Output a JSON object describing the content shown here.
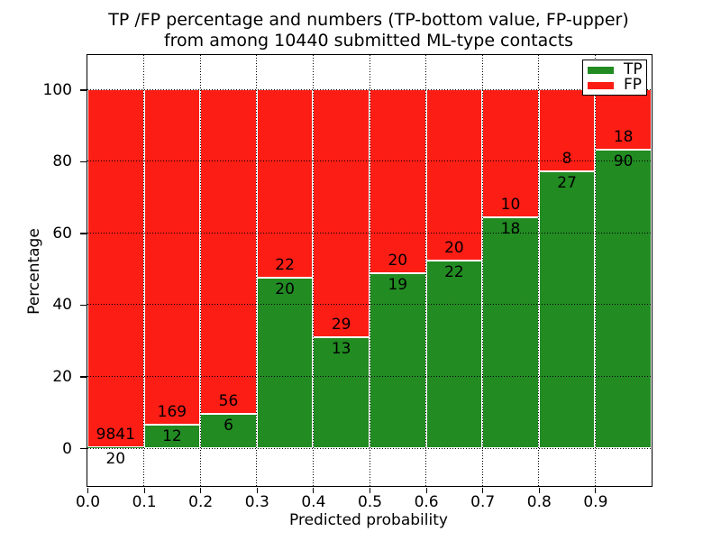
{
  "chart_data": {
    "type": "bar",
    "stacked": true,
    "normalized": "percent",
    "title": [
      "TP /FP percentage and numbers (TP-bottom value, FP-upper)",
      "from among 10440 submitted ML-type contacts"
    ],
    "xlabel": "Predicted probability",
    "ylabel": "Percentage",
    "total_contacts": 10440,
    "categories": [
      "0.0-0.1",
      "0.1-0.2",
      "0.2-0.3",
      "0.3-0.4",
      "0.4-0.5",
      "0.5-0.6",
      "0.6-0.7",
      "0.7-0.8",
      "0.8-0.9",
      "0.9-1.0"
    ],
    "series": [
      {
        "name": "TP",
        "color": "#228b22",
        "counts": [
          20,
          12,
          6,
          20,
          13,
          19,
          22,
          18,
          27,
          90
        ]
      },
      {
        "name": "FP",
        "color": "#fc1d15",
        "counts": [
          9841,
          169,
          56,
          22,
          29,
          20,
          20,
          10,
          8,
          18
        ]
      }
    ],
    "x_tick_labels": [
      "0.0",
      "0.1",
      "0.2",
      "0.3",
      "0.4",
      "0.5",
      "0.6",
      "0.7",
      "0.8",
      "0.9"
    ],
    "y_tick_values": [
      0,
      20,
      40,
      60,
      80,
      100
    ],
    "xlim": [
      0.0,
      1.0
    ],
    "ylim": [
      -10.6,
      109.7
    ],
    "grid": "dotted",
    "bar_edge_color": "#ffffff",
    "legend": {
      "position": "upper right",
      "entries": [
        "TP",
        "FP"
      ]
    }
  }
}
